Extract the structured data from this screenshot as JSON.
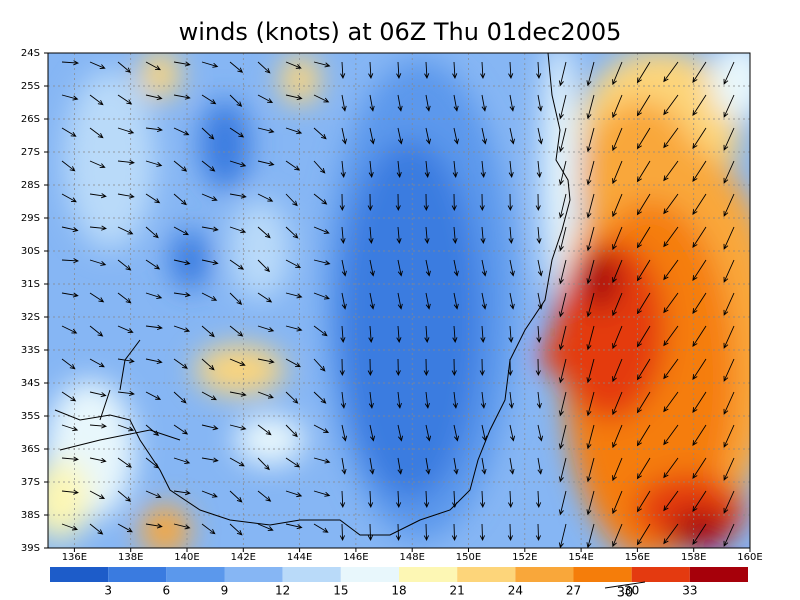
{
  "title": "winds (knots) at 06Z Thu 01dec2005",
  "map": {
    "lat_labels": [
      "24S",
      "25S",
      "26S",
      "27S",
      "28S",
      "29S",
      "30S",
      "31S",
      "32S",
      "33S",
      "34S",
      "35S",
      "36S",
      "37S",
      "38S",
      "39S"
    ],
    "lon_labels": [
      "136E",
      "138E",
      "140E",
      "142E",
      "144E",
      "146E",
      "148E",
      "150E",
      "152E",
      "154E",
      "156E",
      "158E",
      "160E"
    ]
  },
  "colorbar": {
    "labels": [
      "3",
      "6",
      "9",
      "12",
      "15",
      "18",
      "21",
      "24",
      "27",
      "30",
      "33"
    ],
    "colors": [
      "#1d5cc9",
      "#3a7be0",
      "#5b98ec",
      "#86b6f4",
      "#b9daf9",
      "#e8f7fc",
      "#fdf7b4",
      "#fdd57a",
      "#f9a73a",
      "#f57d0a",
      "#e43a10",
      "#a6000a"
    ]
  },
  "reference_vector": {
    "label": "30"
  }
}
